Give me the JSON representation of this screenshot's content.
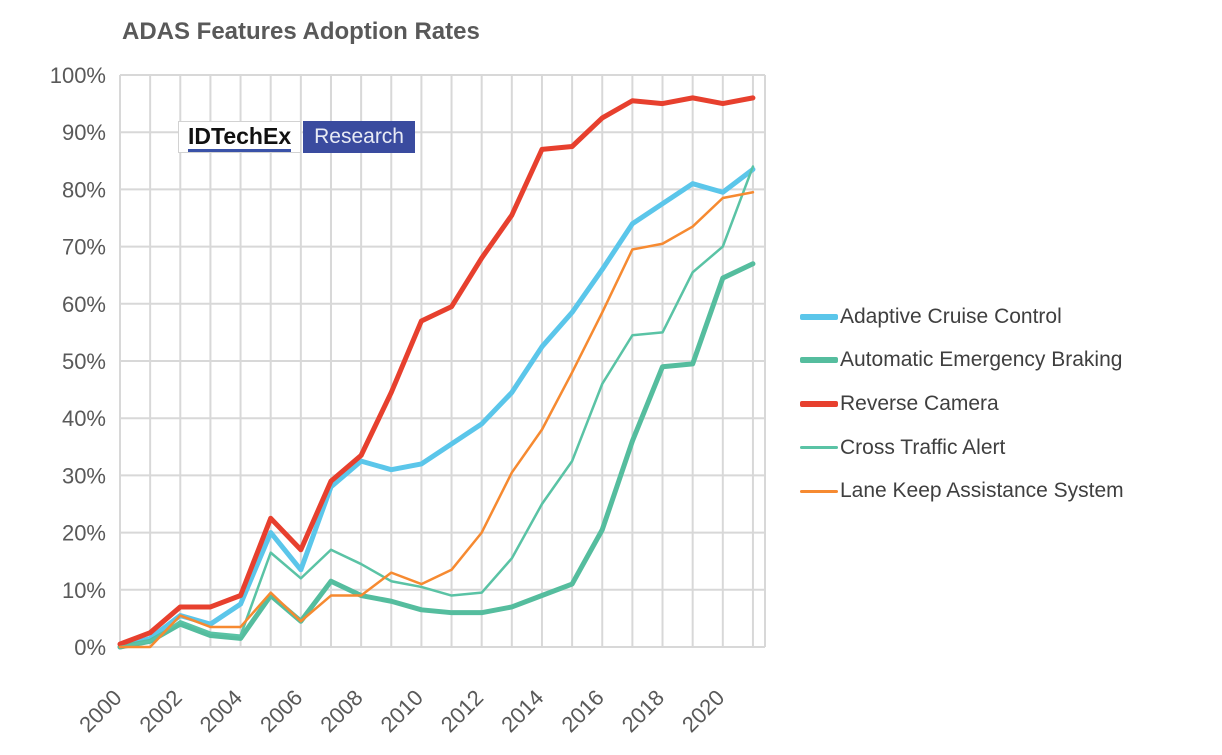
{
  "header": {
    "title": "ADAS Features Adoption Rates"
  },
  "logo": {
    "brand": "IDTechEx",
    "suffix": "Research",
    "underline_color": "#3a52a8",
    "box_color": "#3a4b9f"
  },
  "colors": {
    "grid": "#d8d8d8",
    "axis_text": "#595959",
    "legend_text": "#3f3f3f",
    "background": "#ffffff"
  },
  "chart_data": {
    "type": "line",
    "title": "ADAS Features Adoption Rates",
    "xlabel": "",
    "ylabel": "",
    "xlim": [
      2000,
      2021.4
    ],
    "ylim": [
      0,
      100
    ],
    "grid": true,
    "legend_position": "right",
    "x": [
      2000,
      2001,
      2002,
      2003,
      2004,
      2005,
      2006,
      2007,
      2008,
      2009,
      2010,
      2011,
      2012,
      2013,
      2014,
      2015,
      2016,
      2017,
      2018,
      2019,
      2020,
      2021
    ],
    "x_tick_labels": [
      "2000",
      "2002",
      "2004",
      "2006",
      "2008",
      "2010",
      "2012",
      "2014",
      "2016",
      "2018",
      "2020"
    ],
    "x_tick_years": [
      2000,
      2002,
      2004,
      2006,
      2008,
      2010,
      2012,
      2014,
      2016,
      2018,
      2020
    ],
    "y_ticks": [
      0,
      10,
      20,
      30,
      40,
      50,
      60,
      70,
      80,
      90,
      100
    ],
    "y_tick_labels": [
      "0%",
      "10%",
      "20%",
      "30%",
      "40%",
      "50%",
      "60%",
      "70%",
      "80%",
      "90%",
      "100%"
    ],
    "series": [
      {
        "name": "Adaptive Cruise Control",
        "color": "#5bc6ea",
        "stroke_width": 5,
        "values": [
          0,
          1.5,
          5.5,
          4,
          7.5,
          20,
          13.5,
          28,
          32.5,
          31,
          32,
          35.5,
          39,
          44.5,
          52.5,
          58.5,
          66,
          74,
          77.5,
          81,
          79.5,
          83.5
        ]
      },
      {
        "name": "Automatic Emergency Braking",
        "color": "#55bd9e",
        "stroke_width": 5,
        "values": [
          0,
          1,
          4,
          2,
          1.5,
          9,
          4.5,
          11.5,
          9,
          8,
          6.5,
          6,
          6,
          7,
          9,
          11,
          20.5,
          36,
          49,
          49.5,
          64.5,
          67
        ]
      },
      {
        "name": "Reverse Camera",
        "color": "#e7402e",
        "stroke_width": 5,
        "values": [
          0.5,
          2.5,
          7,
          7,
          9,
          22.5,
          17,
          29,
          33.5,
          44.5,
          57,
          59.5,
          68,
          75.5,
          87,
          87.5,
          92.5,
          95.5,
          95,
          96,
          95,
          96
        ]
      },
      {
        "name": "Cross Traffic Alert",
        "color": "#5ac3a5",
        "stroke_width": 2.5,
        "values": [
          0,
          1,
          4.5,
          2.5,
          2,
          16.5,
          12,
          17,
          14.5,
          11.5,
          10.5,
          9,
          9.5,
          15.5,
          25,
          32.5,
          46,
          54.5,
          55,
          65.5,
          70,
          84
        ]
      },
      {
        "name": "Lane Keep Assistance System",
        "color": "#f68a31",
        "stroke_width": 2.5,
        "values": [
          0,
          0,
          5.5,
          3.5,
          3.5,
          9.5,
          4.5,
          9,
          9,
          13,
          11,
          13.5,
          20,
          30.5,
          38,
          48,
          58.5,
          69.5,
          70.5,
          73.5,
          78.5,
          79.5
        ]
      }
    ]
  }
}
